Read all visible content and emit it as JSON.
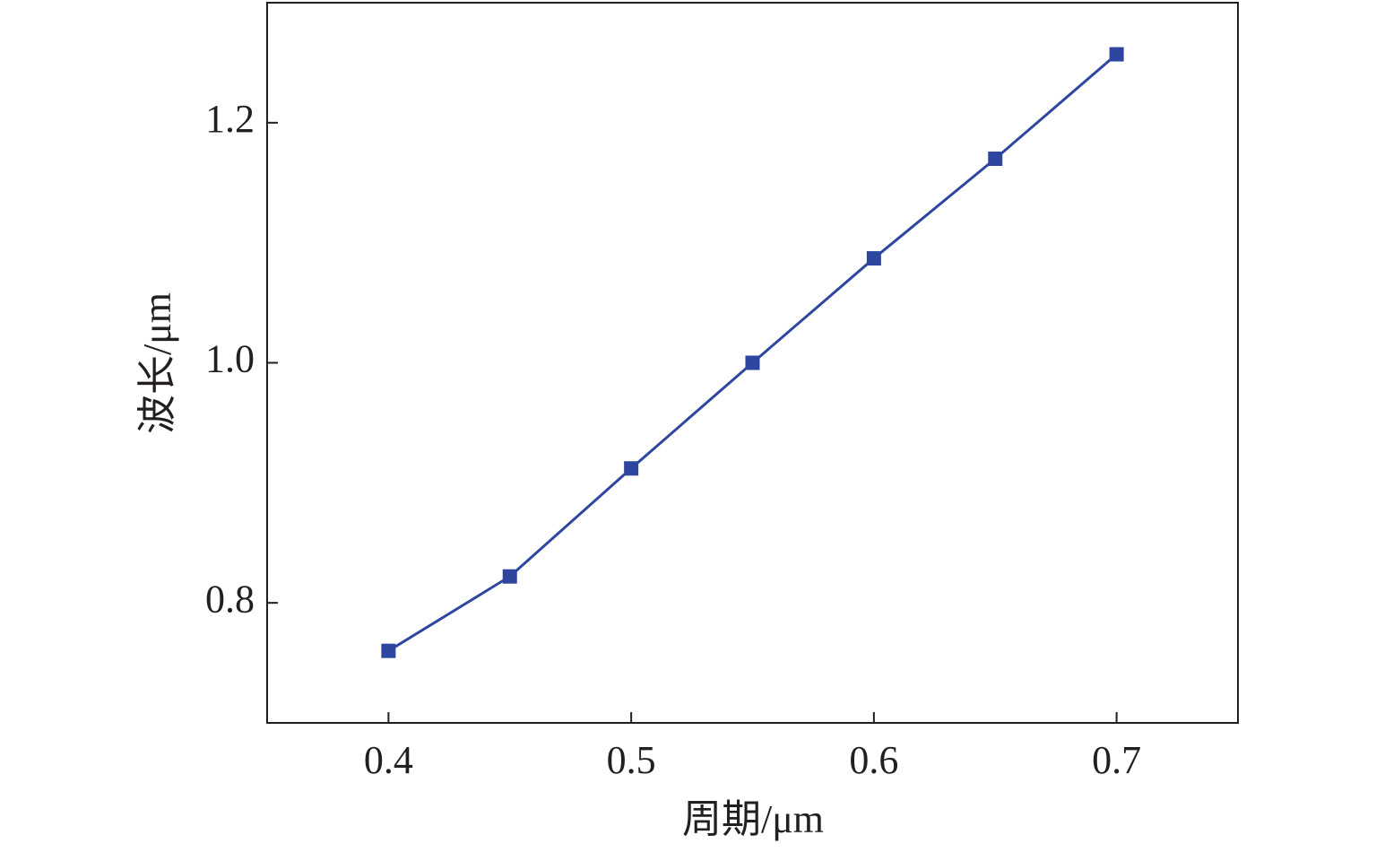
{
  "chart_data": {
    "type": "line",
    "x_label": "周期/μm",
    "y_label": "波长/μm",
    "x": [
      0.4,
      0.45,
      0.5,
      0.55,
      0.6,
      0.65,
      0.7
    ],
    "series": [
      {
        "color": "#2e46a0",
        "values": [
          0.76,
          0.822,
          0.912,
          1.0,
          1.087,
          1.17,
          1.257
        ]
      }
    ],
    "xlim": [
      0.35,
      0.75
    ],
    "xticks": [
      0.4,
      0.5,
      0.6,
      0.7
    ],
    "ylim": [
      0.7,
      1.3
    ],
    "yticks": [
      0.8,
      {
        "value": 1,
        "label": "1.0"
      },
      1.2
    ],
    "grid": false
  }
}
